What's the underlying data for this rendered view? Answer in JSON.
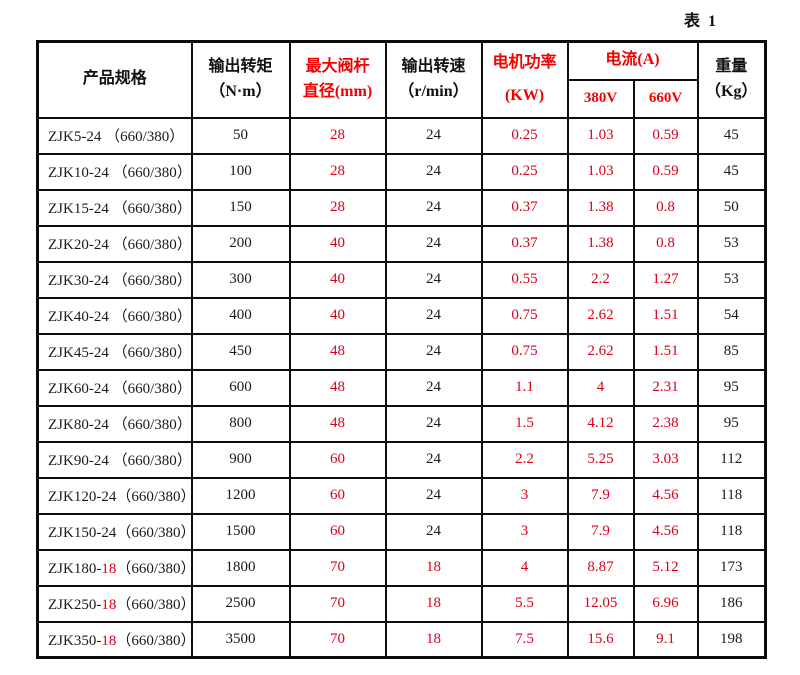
{
  "caption": "表 1",
  "colors": {
    "red_header": "#f40000",
    "red_data": "#d9001b",
    "border": "#0c0c0c",
    "text": "#111111",
    "background": "#ffffff"
  },
  "table": {
    "header": {
      "product_spec": "产品规格",
      "torque_l1": "输出转矩",
      "torque_l2": "（N·m）",
      "stem_l1": "最大阀杆",
      "stem_l2": "直径(mm)",
      "speed_l1": "输出转速",
      "speed_l2": "（r/min）",
      "power_l1": "电机功率",
      "power_l2": "(KW)",
      "current": "电流(A)",
      "v380": "380V",
      "v660": "660V",
      "weight_l1": "重量",
      "weight_l2": "（Kg）"
    },
    "rows": [
      {
        "model_pre": "ZJK5-24 ",
        "model_red": "",
        "model_post": "（660/380）",
        "torque": "50",
        "stem_dia": "28",
        "speed": "24",
        "speed_red": false,
        "power": "0.25",
        "current_380v": "1.03",
        "current_660v": "0.59",
        "weight": "45"
      },
      {
        "model_pre": "ZJK10-24 ",
        "model_red": "",
        "model_post": "（660/380）",
        "torque": "100",
        "stem_dia": "28",
        "speed": "24",
        "speed_red": false,
        "power": "0.25",
        "current_380v": "1.03",
        "current_660v": "0.59",
        "weight": "45"
      },
      {
        "model_pre": "ZJK15-24 ",
        "model_red": "",
        "model_post": "（660/380）",
        "torque": "150",
        "stem_dia": "28",
        "speed": "24",
        "speed_red": false,
        "power": "0.37",
        "current_380v": "1.38",
        "current_660v": "0.8",
        "weight": "50"
      },
      {
        "model_pre": "ZJK20-24 ",
        "model_red": "",
        "model_post": "（660/380）",
        "torque": "200",
        "stem_dia": "40",
        "speed": "24",
        "speed_red": false,
        "power": "0.37",
        "current_380v": "1.38",
        "current_660v": "0.8",
        "weight": "53"
      },
      {
        "model_pre": "ZJK30-24 ",
        "model_red": "",
        "model_post": "（660/380）",
        "torque": "300",
        "stem_dia": "40",
        "speed": "24",
        "speed_red": false,
        "power": "0.55",
        "current_380v": "2.2",
        "current_660v": "1.27",
        "weight": "53"
      },
      {
        "model_pre": "ZJK40-24 ",
        "model_red": "",
        "model_post": "（660/380）",
        "torque": "400",
        "stem_dia": "40",
        "speed": "24",
        "speed_red": false,
        "power": "0.75",
        "current_380v": "2.62",
        "current_660v": "1.51",
        "weight": "54"
      },
      {
        "model_pre": "ZJK45-24 ",
        "model_red": "",
        "model_post": "（660/380）",
        "torque": "450",
        "stem_dia": "48",
        "speed": "24",
        "speed_red": false,
        "power": "0.75",
        "current_380v": "2.62",
        "current_660v": "1.51",
        "weight": "85"
      },
      {
        "model_pre": "ZJK60-24 ",
        "model_red": "",
        "model_post": "（660/380）",
        "torque": "600",
        "stem_dia": "48",
        "speed": "24",
        "speed_red": false,
        "power": "1.1",
        "current_380v": "4",
        "current_660v": "2.31",
        "weight": "95"
      },
      {
        "model_pre": "ZJK80-24 ",
        "model_red": "",
        "model_post": "（660/380）",
        "torque": "800",
        "stem_dia": "48",
        "speed": "24",
        "speed_red": false,
        "power": "1.5",
        "current_380v": "4.12",
        "current_660v": "2.38",
        "weight": "95"
      },
      {
        "model_pre": "ZJK90-24 ",
        "model_red": "",
        "model_post": "（660/380）",
        "torque": "900",
        "stem_dia": "60",
        "speed": "24",
        "speed_red": false,
        "power": "2.2",
        "current_380v": "5.25",
        "current_660v": "3.03",
        "weight": "112"
      },
      {
        "model_pre": "ZJK120-24",
        "model_red": "",
        "model_post": "（660/380）",
        "torque": "1200",
        "stem_dia": "60",
        "speed": "24",
        "speed_red": false,
        "power": "3",
        "current_380v": "7.9",
        "current_660v": "4.56",
        "weight": "118"
      },
      {
        "model_pre": "ZJK150-24",
        "model_red": "",
        "model_post": "（660/380）",
        "torque": "1500",
        "stem_dia": "60",
        "speed": "24",
        "speed_red": false,
        "power": "3",
        "current_380v": "7.9",
        "current_660v": "4.56",
        "weight": "118"
      },
      {
        "model_pre": "ZJK180-",
        "model_red": "18",
        "model_post": "（660/380）",
        "torque": "1800",
        "stem_dia": "70",
        "speed": "18",
        "speed_red": true,
        "power": "4",
        "current_380v": "8.87",
        "current_660v": "5.12",
        "weight": "173"
      },
      {
        "model_pre": "ZJK250-",
        "model_red": "18",
        "model_post": "（660/380）",
        "torque": "2500",
        "stem_dia": "70",
        "speed": "18",
        "speed_red": true,
        "power": "5.5",
        "current_380v": "12.05",
        "current_660v": "6.96",
        "weight": "186"
      },
      {
        "model_pre": "ZJK350-",
        "model_red": "18",
        "model_post": "（660/380）",
        "torque": "3500",
        "stem_dia": "70",
        "speed": "18",
        "speed_red": true,
        "power": "7.5",
        "current_380v": "15.6",
        "current_660v": "9.1",
        "weight": "198"
      }
    ]
  }
}
